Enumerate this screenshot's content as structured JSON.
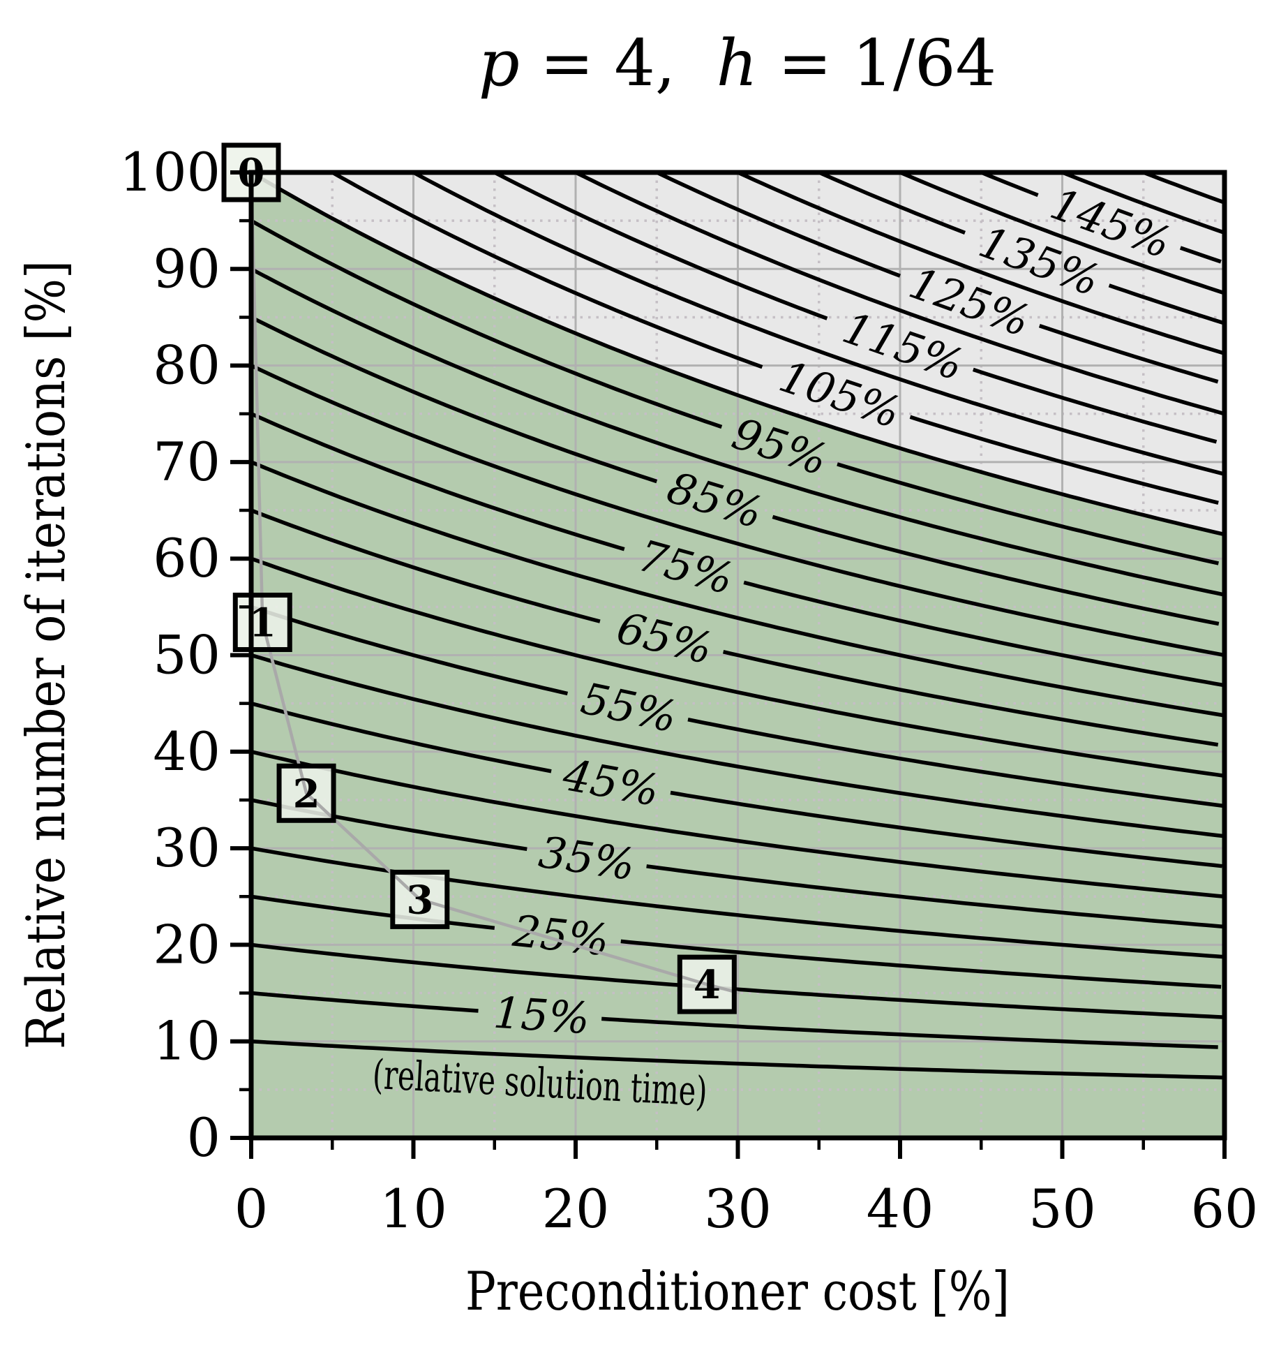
{
  "title": {
    "p": "p",
    "eq1": " = 4,  ",
    "h": "h",
    "eq2": " = 1/64"
  },
  "axes": {
    "x": {
      "label": "Preconditioner cost [%]",
      "min": 0,
      "max": 60,
      "major_ticks": [
        0,
        10,
        20,
        30,
        40,
        50,
        60
      ],
      "minor_ticks": [
        5,
        15,
        25,
        35,
        45,
        55
      ]
    },
    "y": {
      "label": "Relative number of iterations [%]",
      "min": 0,
      "max": 100,
      "major_ticks": [
        0,
        10,
        20,
        30,
        40,
        50,
        60,
        70,
        80,
        90,
        100
      ],
      "minor_ticks": [
        5,
        15,
        25,
        35,
        45,
        55,
        65,
        75,
        85,
        95
      ]
    }
  },
  "chart_data": {
    "type": "contour",
    "title": "p = 4, h = 1/64",
    "xlabel": "Preconditioner cost [%]",
    "ylabel": "Relative number of iterations [%]",
    "xlim": [
      0,
      60
    ],
    "ylim": [
      0,
      100
    ],
    "grid": {
      "major": "solid",
      "minor": "dotted"
    },
    "iso_formula": "relative solution time T% = iterations% * (1 + cost%/100)",
    "levels": [
      10,
      15,
      20,
      25,
      30,
      35,
      40,
      45,
      50,
      55,
      60,
      65,
      70,
      75,
      80,
      85,
      90,
      95,
      100,
      105,
      110,
      115,
      120,
      125,
      130,
      135,
      140,
      145,
      150,
      155
    ],
    "labeled_levels": [
      {
        "level": 15,
        "label": "15%",
        "anchor_x": 17.9
      },
      {
        "level": 25,
        "label": "25%",
        "anchor_x": 19.1
      },
      {
        "level": 35,
        "label": "35%",
        "anchor_x": 20.7
      },
      {
        "level": 45,
        "label": "45%",
        "anchor_x": 22.2
      },
      {
        "level": 55,
        "label": "55%",
        "anchor_x": 23.3
      },
      {
        "level": 65,
        "label": "65%",
        "anchor_x": 25.5
      },
      {
        "level": 75,
        "label": "75%",
        "anchor_x": 26.8
      },
      {
        "level": 85,
        "label": "85%",
        "anchor_x": 28.6
      },
      {
        "level": 95,
        "label": "95%",
        "anchor_x": 32.6
      },
      {
        "level": 105,
        "label": "105%",
        "anchor_x": 36.3
      },
      {
        "level": 115,
        "label": "115%",
        "anchor_x": 40.2
      },
      {
        "level": 125,
        "label": "125%",
        "anchor_x": 44.3
      },
      {
        "level": 135,
        "label": "135%",
        "anchor_x": 48.6
      },
      {
        "level": 145,
        "label": "145%",
        "anchor_x": 53.0
      }
    ],
    "regions": [
      {
        "name": "speedup-region (T < 100%)",
        "color": "#b4cbae"
      },
      {
        "name": "slowdown-region (T > 100%)",
        "color": "#e8e8e8"
      }
    ],
    "markers": [
      {
        "label": "0",
        "x": 0.0,
        "y": 100.0
      },
      {
        "label": "1",
        "x": 0.7,
        "y": 53.4
      },
      {
        "label": "2",
        "x": 3.4,
        "y": 35.7
      },
      {
        "label": "3",
        "x": 10.4,
        "y": 24.7
      },
      {
        "label": "4",
        "x": 28.1,
        "y": 15.9
      }
    ],
    "connector_tail": {
      "x": 30.1,
      "y": 15.0
    },
    "annotation": {
      "text": "(relative solution time)",
      "x": 17.8,
      "y": 5.7,
      "rotation_deg": 3
    }
  },
  "colors": {
    "background": "#ffffff",
    "contour_line": "#000000",
    "grid_major": "#b1b1b1",
    "grid_minor": "#c5bfc5",
    "region_fast": "#b4cbae",
    "region_slow": "#e8e8e8",
    "marker_box_fill": "#edf2e9",
    "marker_box_border": "#000000",
    "connector": "#a9a9a9",
    "spine": "#000000"
  }
}
